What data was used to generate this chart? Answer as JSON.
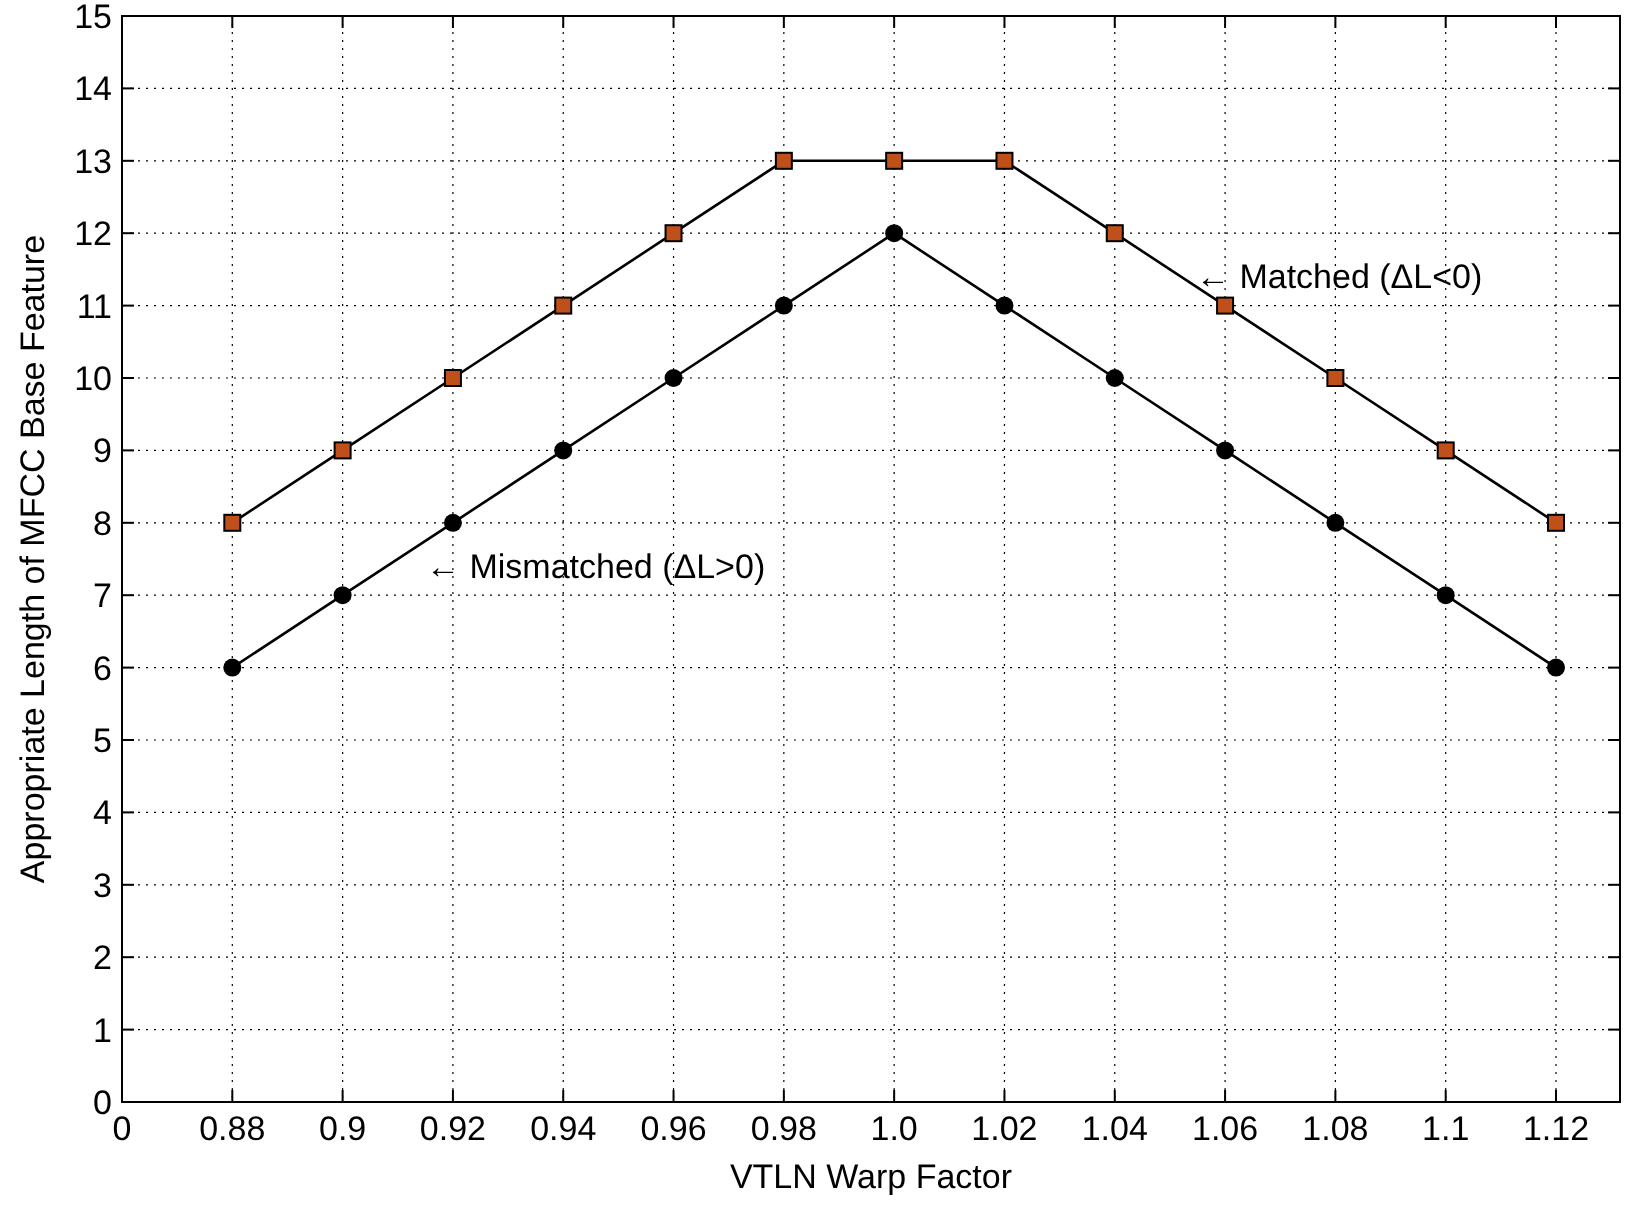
{
  "chart_data": {
    "type": "line",
    "xlabel": "VTLN Warp Factor",
    "ylabel": "Appropriate Length of MFCC Base Feature",
    "categories": [
      "0",
      "0.88",
      "0.9",
      "0.92",
      "0.94",
      "0.96",
      "0.98",
      "1.0",
      "1.02",
      "1.04",
      "1.06",
      "1.08",
      "1.1",
      "1.12"
    ],
    "series": [
      {
        "color": "#000000",
        "marker": "square",
        "values": [
          null,
          8,
          9,
          10,
          11,
          12,
          13,
          13,
          13,
          12,
          11,
          10,
          9,
          8
        ]
      },
      {
        "color": "#000000",
        "marker": "circle",
        "values": [
          null,
          6,
          7,
          8,
          9,
          10,
          11,
          12,
          11,
          10,
          9,
          8,
          7,
          6
        ]
      }
    ],
    "ylim": [
      0,
      15
    ],
    "yticks": [
      0,
      1,
      2,
      3,
      4,
      5,
      6,
      7,
      8,
      9,
      10,
      11,
      12,
      13,
      14,
      15
    ],
    "grid": true,
    "line_style": "solid",
    "annotations": [
      "← Matched (ΔL<0)",
      "← Mismatched (ΔL>0)"
    ]
  }
}
